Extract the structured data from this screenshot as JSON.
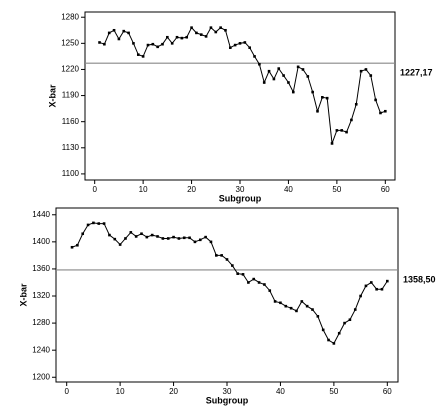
{
  "chart_data": [
    {
      "type": "line",
      "y_label": "X-bar",
      "x_label": "Subgroup",
      "color": "#000000",
      "center": {
        "value": 1227.17,
        "label": "1227,17"
      },
      "center_color": "#888888",
      "xlim": [
        -2,
        62
      ],
      "xticks": [
        0,
        10,
        20,
        30,
        40,
        50,
        60
      ],
      "ylim": [
        1093,
        1286
      ],
      "yticks": [
        1100,
        1130,
        1160,
        1190,
        1220,
        1250,
        1280
      ],
      "x": [
        1,
        2,
        3,
        4,
        5,
        6,
        7,
        8,
        9,
        10,
        11,
        12,
        13,
        14,
        15,
        16,
        17,
        18,
        19,
        20,
        21,
        22,
        23,
        24,
        25,
        26,
        27,
        28,
        29,
        30,
        31,
        32,
        33,
        34,
        35,
        36,
        37,
        38,
        39,
        40,
        41,
        42,
        43,
        44,
        45,
        46,
        47,
        48,
        49,
        50,
        51,
        52,
        53,
        54,
        55,
        56,
        57,
        58,
        59,
        60
      ],
      "values": [
        1251,
        1249,
        1262,
        1265,
        1255,
        1264,
        1262,
        1250,
        1237,
        1235,
        1248,
        1249,
        1246,
        1249,
        1257,
        1250,
        1257,
        1256,
        1257,
        1268,
        1262,
        1260,
        1258,
        1268,
        1263,
        1268,
        1265,
        1245,
        1248,
        1250,
        1251,
        1245,
        1235,
        1226,
        1205,
        1218,
        1209,
        1221,
        1213,
        1205,
        1194,
        1223,
        1220,
        1212,
        1194,
        1172,
        1188,
        1187,
        1135,
        1150,
        1150,
        1148,
        1162,
        1180,
        1218,
        1220,
        1213,
        1185,
        1170,
        1172
      ]
    },
    {
      "type": "line",
      "y_label": "X-bar",
      "x_label": "Subgroup",
      "color": "#000000",
      "center": {
        "value": 1358.5,
        "label": "1358,50"
      },
      "center_color": "#888888",
      "xlim": [
        -2,
        62
      ],
      "xticks": [
        0,
        10,
        20,
        30,
        40,
        50,
        60
      ],
      "ylim": [
        1193,
        1450
      ],
      "yticks": [
        1200,
        1240,
        1280,
        1320,
        1360,
        1400,
        1440
      ],
      "x": [
        1,
        2,
        3,
        4,
        5,
        6,
        7,
        8,
        9,
        10,
        11,
        12,
        13,
        14,
        15,
        16,
        17,
        18,
        19,
        20,
        21,
        22,
        23,
        24,
        25,
        26,
        27,
        28,
        29,
        30,
        31,
        32,
        33,
        34,
        35,
        36,
        37,
        38,
        39,
        40,
        41,
        42,
        43,
        44,
        45,
        46,
        47,
        48,
        49,
        50,
        51,
        52,
        53,
        54,
        55,
        56,
        57,
        58,
        59,
        60
      ],
      "values": [
        1392,
        1395,
        1412,
        1425,
        1428,
        1427,
        1427,
        1410,
        1404,
        1396,
        1405,
        1414,
        1408,
        1412,
        1407,
        1410,
        1408,
        1405,
        1405,
        1407,
        1405,
        1406,
        1406,
        1400,
        1403,
        1407,
        1400,
        1380,
        1380,
        1374,
        1365,
        1353,
        1352,
        1340,
        1345,
        1340,
        1337,
        1328,
        1312,
        1310,
        1305,
        1302,
        1298,
        1312,
        1305,
        1300,
        1290,
        1270,
        1255,
        1250,
        1265,
        1280,
        1285,
        1300,
        1320,
        1335,
        1340,
        1330,
        1330,
        1342
      ]
    }
  ]
}
